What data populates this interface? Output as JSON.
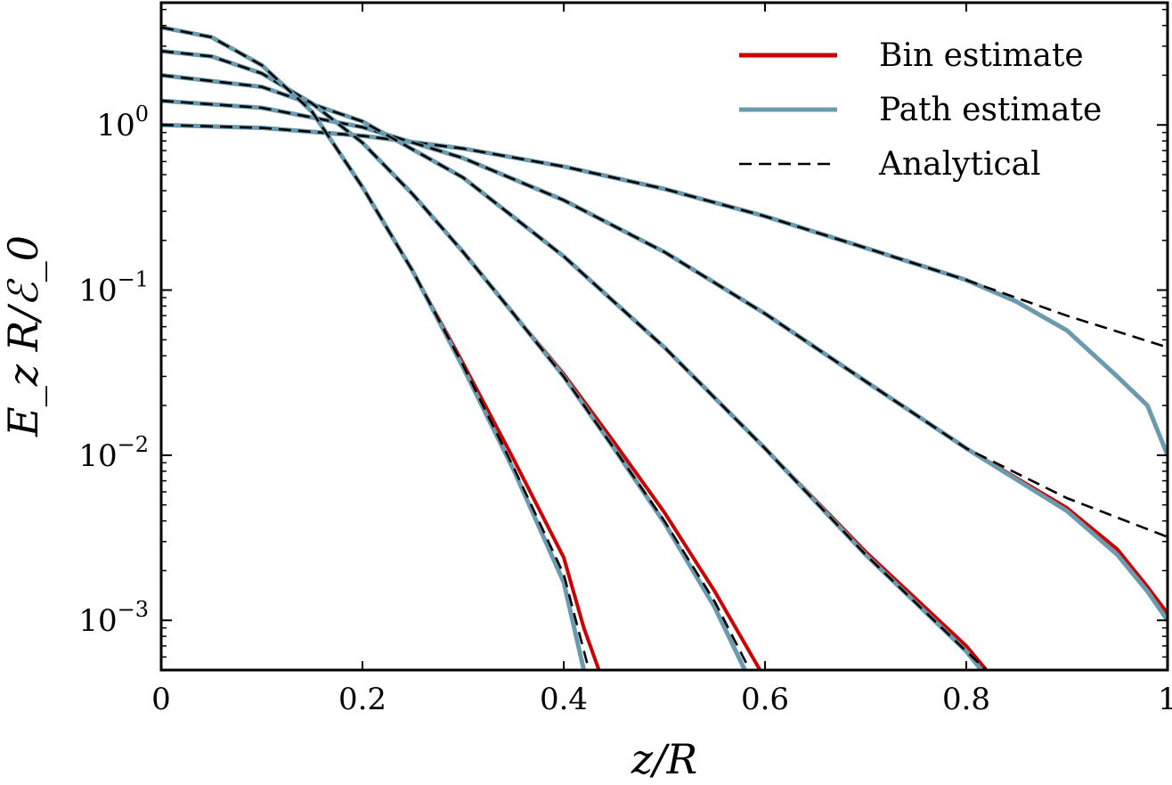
{
  "chart_data": {
    "type": "line",
    "title": "",
    "xlabel": "z/R",
    "ylabel": "E_z R/ℰ_0",
    "y_scale": "log",
    "xlim": [
      0,
      1
    ],
    "ylim": [
      0.0005,
      5.5
    ],
    "x_ticks": [
      0,
      0.2,
      0.4,
      0.6,
      0.8,
      1
    ],
    "x_tick_labels": [
      "0",
      "0.2",
      "0.4",
      "0.6",
      "0.8",
      "1"
    ],
    "y_ticks": [
      0.001,
      0.01,
      0.1,
      1
    ],
    "y_tick_labels": [
      {
        "base": "10",
        "exp": "−3"
      },
      {
        "base": "10",
        "exp": "−2"
      },
      {
        "base": "10",
        "exp": "−1"
      },
      {
        "base": "10",
        "exp": "0"
      }
    ],
    "grid": false,
    "legend_position": "top-right",
    "legend": [
      {
        "label": "Bin estimate",
        "color": "#cc0000",
        "style": "solid"
      },
      {
        "label": "Path estimate",
        "color": "#6b9aae",
        "style": "solid"
      },
      {
        "label": "Analytical",
        "color": "#000000",
        "style": "dashed"
      }
    ],
    "families": [
      {
        "analytical": {
          "x": [
            0,
            0.1,
            0.2,
            0.3,
            0.4,
            0.5,
            0.6,
            0.7,
            0.8,
            0.9,
            1.0
          ],
          "y": [
            1.0,
            0.96,
            0.86,
            0.72,
            0.56,
            0.41,
            0.28,
            0.18,
            0.115,
            0.07,
            0.045
          ]
        },
        "bin": {
          "x": [
            0,
            0.1,
            0.2,
            0.3,
            0.4,
            0.5,
            0.6,
            0.7,
            0.8,
            0.85,
            0.9,
            0.95,
            0.98,
            1.0
          ],
          "y": [
            1.0,
            0.96,
            0.86,
            0.72,
            0.56,
            0.41,
            0.28,
            0.18,
            0.115,
            0.085,
            0.057,
            0.03,
            0.02,
            0.01
          ]
        },
        "path": {
          "x": [
            0,
            0.1,
            0.2,
            0.3,
            0.4,
            0.5,
            0.6,
            0.7,
            0.8,
            0.85,
            0.9,
            0.95,
            0.98,
            1.0
          ],
          "y": [
            1.0,
            0.96,
            0.86,
            0.72,
            0.56,
            0.41,
            0.28,
            0.18,
            0.115,
            0.085,
            0.057,
            0.03,
            0.02,
            0.01
          ]
        }
      },
      {
        "analytical": {
          "x": [
            0,
            0.1,
            0.2,
            0.3,
            0.4,
            0.5,
            0.6,
            0.7,
            0.8,
            0.9,
            1.0
          ],
          "y": [
            1.4,
            1.27,
            0.97,
            0.63,
            0.35,
            0.17,
            0.072,
            0.028,
            0.011,
            0.0055,
            0.0032
          ]
        },
        "bin": {
          "x": [
            0,
            0.1,
            0.2,
            0.3,
            0.4,
            0.5,
            0.6,
            0.7,
            0.8,
            0.9,
            0.95,
            0.98,
            1.0
          ],
          "y": [
            1.4,
            1.27,
            0.97,
            0.63,
            0.35,
            0.17,
            0.072,
            0.028,
            0.011,
            0.0048,
            0.0027,
            0.0016,
            0.0011
          ]
        },
        "path": {
          "x": [
            0,
            0.1,
            0.2,
            0.3,
            0.4,
            0.5,
            0.6,
            0.7,
            0.8,
            0.9,
            0.95,
            0.98,
            1.0
          ],
          "y": [
            1.4,
            1.27,
            0.97,
            0.63,
            0.35,
            0.17,
            0.072,
            0.028,
            0.011,
            0.0046,
            0.0025,
            0.0015,
            0.001
          ]
        }
      },
      {
        "analytical": {
          "x": [
            0,
            0.1,
            0.2,
            0.3,
            0.4,
            0.5,
            0.6,
            0.7,
            0.8,
            0.82
          ],
          "y": [
            2.0,
            1.7,
            1.05,
            0.48,
            0.16,
            0.045,
            0.011,
            0.0025,
            0.00065,
            0.0005
          ]
        },
        "bin": {
          "x": [
            0,
            0.1,
            0.2,
            0.3,
            0.4,
            0.5,
            0.6,
            0.7,
            0.8,
            0.82
          ],
          "y": [
            2.0,
            1.7,
            1.05,
            0.48,
            0.16,
            0.045,
            0.011,
            0.0026,
            0.0007,
            0.0005
          ]
        },
        "path": {
          "x": [
            0,
            0.1,
            0.2,
            0.3,
            0.4,
            0.5,
            0.6,
            0.7,
            0.8,
            0.815
          ],
          "y": [
            2.0,
            1.7,
            1.05,
            0.48,
            0.16,
            0.045,
            0.011,
            0.0025,
            0.00065,
            0.0005
          ]
        }
      },
      {
        "analytical": {
          "x": [
            0,
            0.05,
            0.1,
            0.15,
            0.2,
            0.25,
            0.3,
            0.35,
            0.4,
            0.45,
            0.5,
            0.55,
            0.585
          ],
          "y": [
            2.8,
            2.6,
            2.05,
            1.35,
            0.78,
            0.38,
            0.17,
            0.072,
            0.03,
            0.011,
            0.004,
            0.0013,
            0.0005
          ]
        },
        "bin": {
          "x": [
            0,
            0.05,
            0.1,
            0.15,
            0.2,
            0.25,
            0.3,
            0.35,
            0.4,
            0.45,
            0.5,
            0.55,
            0.595
          ],
          "y": [
            2.8,
            2.6,
            2.05,
            1.35,
            0.78,
            0.38,
            0.17,
            0.072,
            0.031,
            0.012,
            0.0045,
            0.0015,
            0.0005
          ]
        },
        "path": {
          "x": [
            0,
            0.05,
            0.1,
            0.15,
            0.2,
            0.25,
            0.3,
            0.35,
            0.4,
            0.45,
            0.5,
            0.55,
            0.58
          ],
          "y": [
            2.8,
            2.6,
            2.05,
            1.35,
            0.78,
            0.38,
            0.17,
            0.072,
            0.03,
            0.011,
            0.0039,
            0.0012,
            0.0005
          ]
        }
      },
      {
        "analytical": {
          "x": [
            0,
            0.05,
            0.1,
            0.15,
            0.2,
            0.25,
            0.3,
            0.35,
            0.4,
            0.425
          ],
          "y": [
            3.9,
            3.4,
            2.3,
            1.2,
            0.42,
            0.13,
            0.035,
            0.0085,
            0.0019,
            0.0005
          ]
        },
        "bin": {
          "x": [
            0,
            0.05,
            0.1,
            0.15,
            0.2,
            0.25,
            0.3,
            0.35,
            0.4,
            0.42,
            0.435
          ],
          "y": [
            3.9,
            3.4,
            2.3,
            1.2,
            0.42,
            0.13,
            0.036,
            0.0095,
            0.0024,
            0.0009,
            0.0005
          ]
        },
        "path": {
          "x": [
            0,
            0.05,
            0.1,
            0.15,
            0.2,
            0.25,
            0.3,
            0.35,
            0.4,
            0.42
          ],
          "y": [
            3.9,
            3.4,
            2.3,
            1.2,
            0.42,
            0.13,
            0.034,
            0.0082,
            0.0017,
            0.0005
          ]
        }
      }
    ]
  }
}
